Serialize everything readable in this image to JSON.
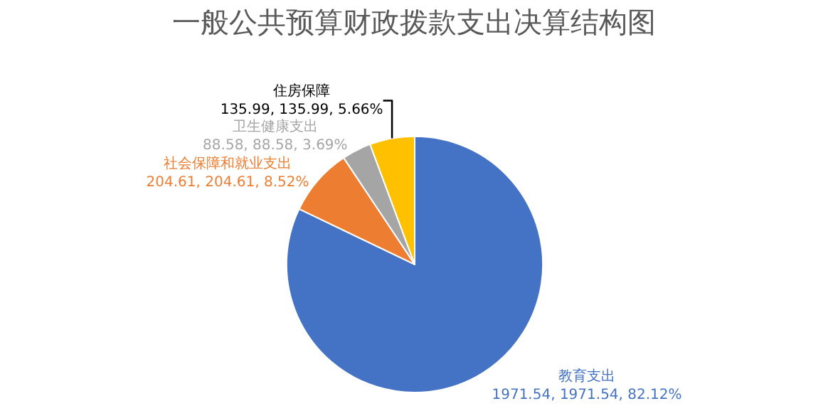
{
  "chart_data": {
    "type": "pie",
    "title": "一般公共预算财政拨款支出决算结构图",
    "categories": [
      "教育支出",
      "社会保障和就业支出",
      "卫生健康支出",
      "住房保障"
    ],
    "values": [
      1971.54,
      204.61,
      88.58,
      135.99
    ],
    "value_labels": [
      "1971.54, 1971.54, 82.12%",
      "204.61, 204.61, 8.52%",
      "88.58, 88.58, 3.69%",
      "135.99, 135.99, 5.66%"
    ],
    "colors": [
      "#4472c4",
      "#ed7d31",
      "#a5a5a5",
      "#ffc000"
    ],
    "legend": false
  }
}
